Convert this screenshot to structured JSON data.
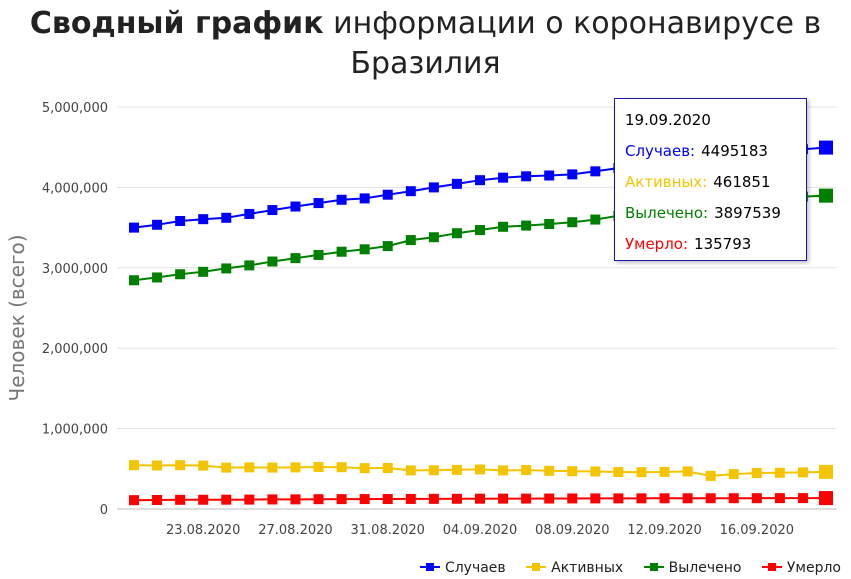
{
  "title": {
    "bold": "Сводный график",
    "rest": " информации о коронавирусе в Бразилия"
  },
  "tooltip": {
    "date": "19.09.2020",
    "rows": [
      {
        "label": "Случаев:",
        "value": "4495183",
        "color": "#0000ff"
      },
      {
        "label": "Активных:",
        "value": "461851",
        "color": "#f5c400"
      },
      {
        "label": "Вылечено:",
        "value": "3897539",
        "color": "#008000"
      },
      {
        "label": "Умерло:",
        "value": "135793",
        "color": "#ff0000"
      }
    ]
  },
  "chart_data": {
    "type": "line",
    "ylabel": "Человек (всего)",
    "xlabel": "",
    "ylim": [
      0,
      5000000
    ],
    "yticks": [
      "0",
      "1,000,000",
      "2,000,000",
      "3,000,000",
      "4,000,000",
      "5,000,000"
    ],
    "x": [
      "20.08.2020",
      "21.08.2020",
      "22.08.2020",
      "23.08.2020",
      "24.08.2020",
      "25.08.2020",
      "26.08.2020",
      "27.08.2020",
      "28.08.2020",
      "29.08.2020",
      "30.08.2020",
      "31.08.2020",
      "01.09.2020",
      "02.09.2020",
      "03.09.2020",
      "04.09.2020",
      "05.09.2020",
      "06.09.2020",
      "07.09.2020",
      "08.09.2020",
      "09.09.2020",
      "10.09.2020",
      "11.09.2020",
      "12.09.2020",
      "13.09.2020",
      "14.09.2020",
      "15.09.2020",
      "16.09.2020",
      "17.09.2020",
      "18.09.2020",
      "19.09.2020"
    ],
    "xtick_labels": [
      "23.08.2020",
      "27.08.2020",
      "31.08.2020",
      "04.09.2020",
      "08.09.2020",
      "12.09.2020",
      "16.09.2020"
    ],
    "legend_position": "bottom-right",
    "grid": true,
    "series": [
      {
        "name": "Случаев",
        "color": "#0000ff",
        "values": [
          3500000,
          3535000,
          3582000,
          3605000,
          3622000,
          3670000,
          3718000,
          3762000,
          3805000,
          3846000,
          3863000,
          3909000,
          3953000,
          4000000,
          4044000,
          4090000,
          4121000,
          4138000,
          4148000,
          4162000,
          4200000,
          4240000,
          4283000,
          4315000,
          4330000,
          4345000,
          4384000,
          4420000,
          4455000,
          4475000,
          4495183
        ]
      },
      {
        "name": "Активных",
        "color": "#f5c400",
        "values": [
          545000,
          541000,
          545000,
          540000,
          515000,
          518000,
          515000,
          518000,
          522000,
          520000,
          508000,
          510000,
          480000,
          482000,
          487000,
          492000,
          480000,
          484000,
          475000,
          470000,
          467000,
          460000,
          458000,
          462000,
          467000,
          412000,
          434000,
          448000,
          451000,
          456000,
          461851
        ]
      },
      {
        "name": "Вылечено",
        "color": "#008000",
        "values": [
          2845000,
          2880000,
          2920000,
          2950000,
          2992000,
          3030000,
          3078000,
          3120000,
          3160000,
          3200000,
          3230000,
          3270000,
          3345000,
          3380000,
          3430000,
          3470000,
          3510000,
          3525000,
          3545000,
          3567000,
          3600000,
          3648000,
          3690000,
          3718000,
          3730000,
          3795000,
          3810000,
          3840000,
          3870000,
          3885000,
          3897539
        ]
      },
      {
        "name": "Умерло",
        "color": "#ff0000",
        "values": [
          110000,
          112000,
          114000,
          115000,
          116000,
          117000,
          119000,
          120000,
          122000,
          123000,
          123500,
          124000,
          125000,
          126000,
          127000,
          128000,
          129000,
          129500,
          130000,
          131000,
          131500,
          132000,
          132500,
          133000,
          133500,
          134000,
          134300,
          134600,
          135000,
          135400,
          135793
        ]
      }
    ]
  }
}
